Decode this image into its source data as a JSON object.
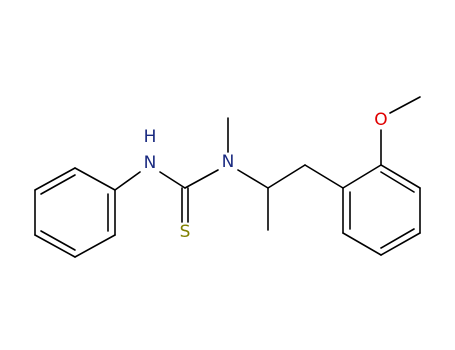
{
  "atoms": [
    {
      "label": "H"
    },
    {
      "label": "N"
    },
    {
      "label": "N"
    },
    {
      "label": "S"
    },
    {
      "label": "O"
    }
  ]
}
